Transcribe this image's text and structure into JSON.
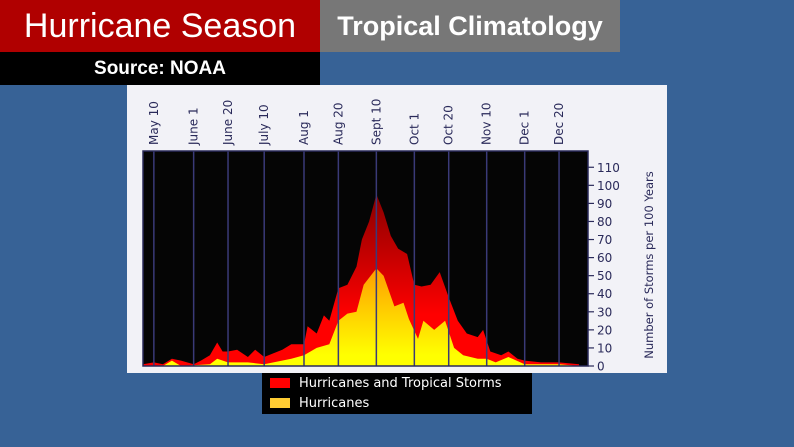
{
  "header": {
    "title": "Hurricane Season",
    "subtitle": "Tropical Climatology",
    "source": "Source: NOAA"
  },
  "chart_data": {
    "type": "area",
    "xlabel": "",
    "ylabel": "Number of Storms per 100 Years",
    "x_tick_labels": [
      "May 10",
      "June 1",
      "June 20",
      "July 10",
      "Aug 1",
      "Aug 20",
      "Sept 10",
      "Oct 1",
      "Oct 20",
      "Nov 10",
      "Dec 1",
      "Dec 20"
    ],
    "x_tick_dates": [
      "05-10",
      "06-01",
      "06-20",
      "07-10",
      "08-01",
      "08-20",
      "09-10",
      "10-01",
      "10-20",
      "11-10",
      "12-01",
      "12-20"
    ],
    "xlim": [
      "05-04",
      "01-05"
    ],
    "y_ticks": [
      0,
      10,
      20,
      30,
      40,
      50,
      60,
      70,
      80,
      90,
      100,
      110
    ],
    "ylim": [
      0,
      119
    ],
    "y_axis_position": "right",
    "x_axis_position": "top",
    "grid": "vertical lines at x ticks",
    "background": "#000000",
    "legend_position": "bottom",
    "series": [
      {
        "name": "Hurricanes and Tropical Storms",
        "color": "#ff0000",
        "points": [
          [
            "05-04",
            1
          ],
          [
            "05-10",
            2
          ],
          [
            "05-15",
            1
          ],
          [
            "05-20",
            4
          ],
          [
            "05-25",
            3
          ],
          [
            "06-01",
            1
          ],
          [
            "06-05",
            3
          ],
          [
            "06-10",
            6
          ],
          [
            "06-14",
            13
          ],
          [
            "06-17",
            8
          ],
          [
            "06-20",
            8
          ],
          [
            "06-25",
            9
          ],
          [
            "07-01",
            5
          ],
          [
            "07-05",
            9
          ],
          [
            "07-10",
            5
          ],
          [
            "07-15",
            7
          ],
          [
            "07-20",
            9
          ],
          [
            "07-25",
            12
          ],
          [
            "08-01",
            12
          ],
          [
            "08-03",
            22
          ],
          [
            "08-08",
            18
          ],
          [
            "08-12",
            28
          ],
          [
            "08-15",
            25
          ],
          [
            "08-20",
            43
          ],
          [
            "08-25",
            45
          ],
          [
            "08-30",
            55
          ],
          [
            "09-02",
            70
          ],
          [
            "09-06",
            80
          ],
          [
            "09-10",
            95
          ],
          [
            "09-14",
            85
          ],
          [
            "09-18",
            72
          ],
          [
            "09-22",
            65
          ],
          [
            "09-27",
            62
          ],
          [
            "10-01",
            45
          ],
          [
            "10-05",
            44
          ],
          [
            "10-10",
            45
          ],
          [
            "10-15",
            52
          ],
          [
            "10-20",
            38
          ],
          [
            "10-25",
            25
          ],
          [
            "10-30",
            18
          ],
          [
            "11-05",
            16
          ],
          [
            "11-08",
            20
          ],
          [
            "11-12",
            8
          ],
          [
            "11-18",
            6
          ],
          [
            "11-22",
            8
          ],
          [
            "11-27",
            4
          ],
          [
            "12-01",
            3
          ],
          [
            "12-10",
            2
          ],
          [
            "12-20",
            2
          ],
          [
            "12-31",
            1
          ]
        ]
      },
      {
        "name": "Hurricanes",
        "color": "#ffcc33",
        "points": [
          [
            "05-04",
            0
          ],
          [
            "05-15",
            0
          ],
          [
            "05-20",
            3
          ],
          [
            "05-25",
            0
          ],
          [
            "06-10",
            1
          ],
          [
            "06-14",
            4
          ],
          [
            "06-20",
            2
          ],
          [
            "07-01",
            2
          ],
          [
            "07-10",
            1
          ],
          [
            "07-25",
            4
          ],
          [
            "08-01",
            6
          ],
          [
            "08-08",
            10
          ],
          [
            "08-15",
            12
          ],
          [
            "08-20",
            25
          ],
          [
            "08-25",
            29
          ],
          [
            "08-30",
            30
          ],
          [
            "09-03",
            45
          ],
          [
            "09-10",
            54
          ],
          [
            "09-14",
            50
          ],
          [
            "09-20",
            33
          ],
          [
            "09-25",
            35
          ],
          [
            "09-28",
            26
          ],
          [
            "10-03",
            15
          ],
          [
            "10-06",
            25
          ],
          [
            "10-12",
            20
          ],
          [
            "10-18",
            25
          ],
          [
            "10-23",
            10
          ],
          [
            "10-28",
            6
          ],
          [
            "11-05",
            4
          ],
          [
            "11-10",
            4
          ],
          [
            "11-15",
            2
          ],
          [
            "11-22",
            5
          ],
          [
            "12-01",
            1
          ],
          [
            "12-20",
            1
          ],
          [
            "12-31",
            0
          ]
        ]
      }
    ]
  }
}
